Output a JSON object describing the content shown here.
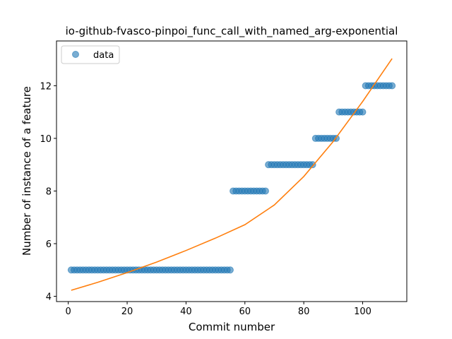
{
  "chart_data": {
    "type": "scatter",
    "title": "io-github-fvasco-pinpoi_func_call_with_named_arg-exponential",
    "xlabel": "Commit number",
    "ylabel": "Number of instance of a feature",
    "xlim": [
      -4,
      115
    ],
    "ylim": [
      3.8,
      13.7
    ],
    "xticks": [
      0,
      20,
      40,
      60,
      80,
      100
    ],
    "yticks": [
      4,
      6,
      8,
      10,
      12
    ],
    "legend": {
      "placement": "top-left",
      "entries": [
        "data"
      ]
    },
    "colors": {
      "data": "#1f77b4",
      "fit": "#ff7f0e"
    },
    "series": [
      {
        "name": "data",
        "kind": "scatter",
        "segments": [
          {
            "x_from": 1,
            "x_to": 55,
            "y": 5
          },
          {
            "x_from": 56,
            "x_to": 67,
            "y": 8
          },
          {
            "x_from": 68,
            "x_to": 83,
            "y": 9
          },
          {
            "x_from": 84,
            "x_to": 91,
            "y": 10
          },
          {
            "x_from": 92,
            "x_to": 100,
            "y": 11
          },
          {
            "x_from": 101,
            "x_to": 110,
            "y": 12
          }
        ]
      },
      {
        "kind": "line",
        "x": [
          1,
          10,
          20,
          30,
          40,
          50,
          60,
          70,
          80,
          90,
          100,
          110
        ],
        "y": [
          4.23,
          4.53,
          4.9,
          5.3,
          5.74,
          6.21,
          6.72,
          7.47,
          8.55,
          9.88,
          11.4,
          13.03
        ]
      }
    ]
  }
}
